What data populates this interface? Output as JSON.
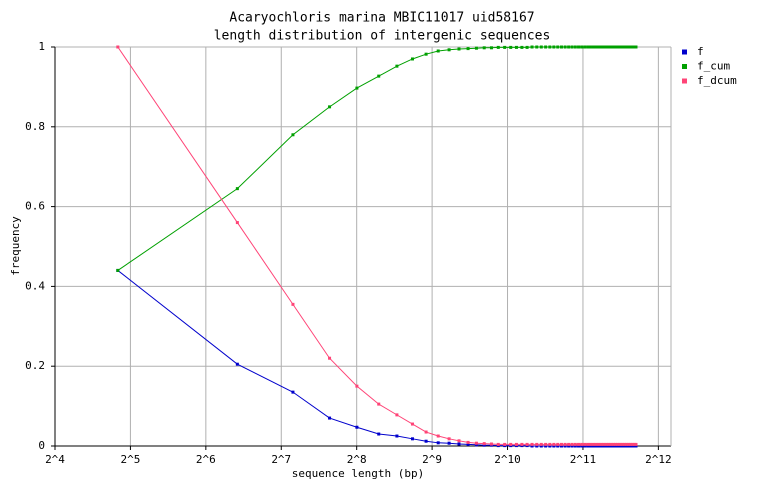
{
  "chart_data": {
    "type": "line",
    "title": "Acaryochloris marina MBIC11017 uid58167",
    "subtitle": "length distribution of intergenic sequences",
    "x_label": "sequence length (bp)",
    "y_label": "frequency",
    "x_log_base": 2,
    "xlim": [
      16,
      4600
    ],
    "xticks": [
      {
        "value": 16,
        "label": "2^4"
      },
      {
        "value": 32,
        "label": "2^5"
      },
      {
        "value": 64,
        "label": "2^6"
      },
      {
        "value": 128,
        "label": "2^7"
      },
      {
        "value": 256,
        "label": "2^8"
      },
      {
        "value": 512,
        "label": "2^9"
      },
      {
        "value": 1024,
        "label": "2^10"
      },
      {
        "value": 2048,
        "label": "2^11"
      },
      {
        "value": 4096,
        "label": "2^12"
      }
    ],
    "ylim": [
      0,
      1
    ],
    "yticks": [
      0,
      0.2,
      0.4,
      0.6,
      0.8,
      1
    ],
    "grid": true,
    "legend": "right",
    "x": [
      28.5,
      85.5,
      142.5,
      199.5,
      256.5,
      313.5,
      370.5,
      427.5,
      484.5,
      541.5,
      598.5,
      655.5,
      712.5,
      769.5,
      826.5,
      883.5,
      940.5,
      997.5,
      1054.5,
      1111.5,
      1168.5,
      1225.5,
      1282.5,
      1339.5,
      1396.5,
      1453.5,
      1510.5,
      1567.5,
      1624.5,
      1681.5,
      1738.5,
      1795.5,
      1852.5,
      1909.5,
      1966.5,
      2023.5,
      2080.5,
      2137.5,
      2194.5,
      2251.5,
      2308.5,
      2365.5,
      2422.5,
      2479.5,
      2536.5,
      2593.5,
      2650.5,
      2707.5,
      2764.5,
      2821.5,
      2878.5,
      2935.5,
      2992.5,
      3049.5,
      3106.5,
      3163.5,
      3220.5,
      3277.5,
      3334.5
    ],
    "series": [
      {
        "name": "f",
        "color": "#0000cc",
        "values": [
          0.44,
          0.205,
          0.135,
          0.07,
          0.047,
          0.03,
          0.025,
          0.018,
          0.012,
          0.008,
          0.007,
          0.005,
          0.004,
          0.003,
          0.002,
          0.002,
          0.001,
          0.001,
          0.001,
          0.001,
          0.001,
          0.001,
          0,
          0,
          0,
          0,
          0,
          0,
          0,
          0,
          0,
          0,
          0,
          0,
          0,
          0,
          0,
          0,
          0,
          0,
          0,
          0,
          0,
          0,
          0,
          0,
          0,
          0,
          0,
          0,
          0,
          0,
          0,
          0,
          0,
          0,
          0,
          0,
          0
        ]
      },
      {
        "name": "f_cum",
        "color": "#00a000",
        "values": [
          0.44,
          0.645,
          0.78,
          0.85,
          0.897,
          0.927,
          0.952,
          0.97,
          0.982,
          0.99,
          0.993,
          0.995,
          0.996,
          0.997,
          0.998,
          0.998,
          0.999,
          0.999,
          0.999,
          0.999,
          0.999,
          0.999,
          1,
          1,
          1,
          1,
          1,
          1,
          1,
          1,
          1,
          1,
          1,
          1,
          1,
          1,
          1,
          1,
          1,
          1,
          1,
          1,
          1,
          1,
          1,
          1,
          1,
          1,
          1,
          1,
          1,
          1,
          1,
          1,
          1,
          1,
          1,
          1,
          1
        ]
      },
      {
        "name": "f_dcum",
        "color": "#ff4477",
        "values": [
          1,
          0.56,
          0.355,
          0.22,
          0.15,
          0.105,
          0.078,
          0.055,
          0.035,
          0.025,
          0.018,
          0.013,
          0.009,
          0.007,
          0.006,
          0.005,
          0.004,
          0.004,
          0.004,
          0.004,
          0.004,
          0.004,
          0.004,
          0.004,
          0.004,
          0.004,
          0.004,
          0.004,
          0.004,
          0.004,
          0.004,
          0.004,
          0.004,
          0.004,
          0.004,
          0.004,
          0.004,
          0.004,
          0.004,
          0.004,
          0.004,
          0.004,
          0.004,
          0.004,
          0.004,
          0.004,
          0.004,
          0.004,
          0.004,
          0.004,
          0.004,
          0.004,
          0.004,
          0.004,
          0.004,
          0.004,
          0.004,
          0.004,
          0.004
        ]
      }
    ]
  }
}
